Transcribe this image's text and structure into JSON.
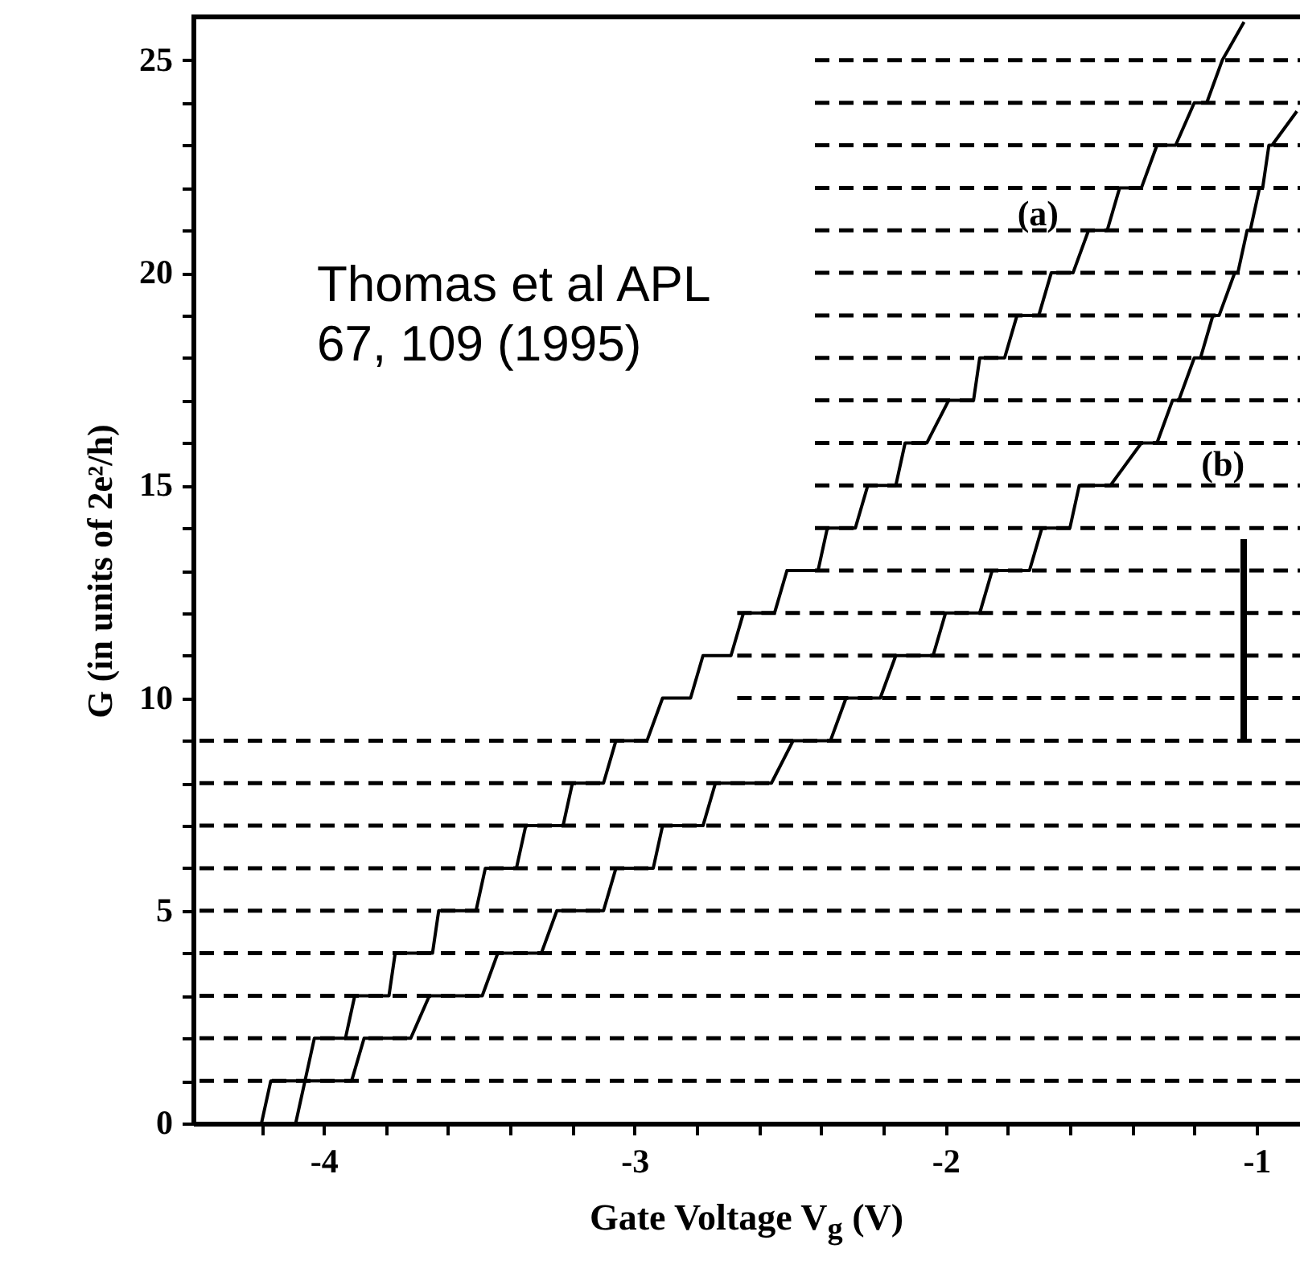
{
  "chart_data": {
    "type": "line",
    "xlabel": "Gate Voltage V$_{g}$ (V)",
    "ylabel": "G (in units of 2e²/h)",
    "xlim": [
      -4.42,
      -0.86
    ],
    "ylim": [
      0,
      26
    ],
    "xticks": [
      {
        "value": -4.2,
        "label": null
      },
      -4,
      {
        "value": -3.8,
        "label": null
      },
      {
        "value": -3.6,
        "label": null
      },
      {
        "value": -3.4,
        "label": null
      },
      {
        "value": -3.2,
        "label": null
      },
      -3,
      {
        "value": -2.8,
        "label": null
      },
      {
        "value": -2.6,
        "label": null
      },
      {
        "value": -2.4,
        "label": null
      },
      {
        "value": -2.2,
        "label": null
      },
      -2,
      {
        "value": -1.8,
        "label": null
      },
      {
        "value": -1.6,
        "label": null
      },
      {
        "value": -1.4,
        "label": null
      },
      {
        "value": -1.2,
        "label": null
      },
      -1
    ],
    "yticks": [
      0,
      {
        "value": 1,
        "label": null
      },
      {
        "value": 2,
        "label": null
      },
      {
        "value": 3,
        "label": null
      },
      {
        "value": 4,
        "label": null
      },
      5,
      {
        "value": 6,
        "label": null
      },
      {
        "value": 7,
        "label": null
      },
      {
        "value": 8,
        "label": null
      },
      {
        "value": 9,
        "label": null
      },
      10,
      {
        "value": 11,
        "label": null
      },
      {
        "value": 12,
        "label": null
      },
      {
        "value": 13,
        "label": null
      },
      {
        "value": 14,
        "label": null
      },
      15,
      {
        "value": 16,
        "label": null
      },
      {
        "value": 17,
        "label": null
      },
      {
        "value": 18,
        "label": null
      },
      {
        "value": 19,
        "label": null
      },
      20,
      {
        "value": 21,
        "label": null
      },
      {
        "value": 22,
        "label": null
      },
      {
        "value": 23,
        "label": null
      },
      {
        "value": 24,
        "label": null
      },
      25
    ],
    "grid": false,
    "annotations": [
      "Thomas et al APL\n67, 109 (1995)"
    ],
    "ref_lines": [
      {
        "axis": "y",
        "value": 1,
        "line_style": "dashed"
      },
      {
        "axis": "y",
        "value": 2,
        "line_style": "dashed"
      },
      {
        "axis": "y",
        "value": 3,
        "line_style": "dashed"
      },
      {
        "axis": "y",
        "value": 4,
        "line_style": "dashed"
      },
      {
        "axis": "y",
        "value": 5,
        "line_style": "dashed"
      },
      {
        "axis": "y",
        "value": 6,
        "line_style": "dashed"
      },
      {
        "axis": "y",
        "value": 7,
        "line_style": "dashed"
      },
      {
        "axis": "y",
        "value": 8,
        "line_style": "dashed"
      },
      {
        "axis": "y",
        "value": 9,
        "line_style": "dashed"
      }
    ],
    "series": [
      {
        "name": "(a)",
        "color": "#000000",
        "line_style": "solid",
        "x": [
          -4.2,
          -4.17,
          -4.06,
          -4.03,
          -3.93,
          -3.9,
          -3.79,
          -3.77,
          -3.65,
          -3.63,
          -3.51,
          -3.48,
          -3.38,
          -3.35,
          -3.23,
          -3.2,
          -3.1,
          -3.06,
          -2.96,
          -2.91,
          -2.82,
          -2.78,
          -2.69,
          -2.65,
          -2.55,
          -2.51,
          -2.41,
          -2.38,
          -2.29,
          -2.25,
          -2.16,
          -2.13,
          -2.06,
          -1.99,
          -1.91,
          -1.89,
          -1.81,
          -1.77,
          -1.7,
          -1.66,
          -1.59,
          -1.54,
          -1.48,
          -1.44,
          -1.37,
          -1.32,
          -1.26,
          -1.2,
          -1.16,
          -1.11,
          -1.04
        ],
        "values": [
          0,
          1,
          1,
          2,
          2,
          3,
          3,
          4,
          4,
          5,
          5,
          6,
          6,
          7,
          7,
          8,
          8,
          9,
          9,
          10,
          10,
          11,
          11,
          12,
          12,
          13,
          13,
          14,
          14,
          15,
          15,
          16,
          16,
          17,
          17,
          18,
          18,
          19,
          19,
          20,
          20,
          21,
          21,
          22,
          22,
          23,
          23,
          24,
          24,
          25,
          25.9
        ]
      },
      {
        "name": "(b)",
        "color": "#000000",
        "line_style": "solid",
        "x": [
          -4.09,
          -4.06,
          -3.91,
          -3.87,
          -3.72,
          -3.66,
          -3.49,
          -3.44,
          -3.3,
          -3.25,
          -3.1,
          -3.06,
          -2.94,
          -2.91,
          -2.78,
          -2.74,
          -2.56,
          -2.49,
          -2.37,
          -2.32,
          -2.21,
          -2.16,
          -2.04,
          -2.0,
          -1.89,
          -1.85,
          -1.73,
          -1.69,
          -1.6,
          -1.57,
          -1.47,
          -1.37,
          -1.32,
          -1.27,
          -1.25,
          -1.2,
          -1.18,
          -1.14,
          -1.12,
          -1.07,
          -1.06,
          -1.03,
          -1.02,
          -0.99,
          -0.98,
          -0.96,
          -0.95,
          -0.87
        ],
        "values": [
          0,
          1,
          1,
          2,
          2,
          3,
          3,
          4,
          4,
          5,
          5,
          6,
          6,
          7,
          7,
          8,
          8,
          9,
          9,
          10,
          10,
          11,
          11,
          12,
          12,
          13,
          13,
          14,
          14,
          15,
          15,
          16,
          16,
          17,
          17,
          18,
          18,
          19,
          19,
          20,
          20,
          21,
          21,
          22,
          22,
          23,
          23,
          23.8
        ]
      },
      {
        "type": "line",
        "color": "#000000",
        "line_style": "dashed",
        "x": [
          -2.67,
          -0.86
        ],
        "values": [
          10,
          10
        ]
      },
      {
        "type": "line",
        "color": "#000000",
        "line_style": "dashed",
        "x": [
          -2.67,
          -0.86
        ],
        "values": [
          11,
          11
        ]
      },
      {
        "type": "line",
        "color": "#000000",
        "line_style": "dashed",
        "x": [
          -2.67,
          -0.86
        ],
        "values": [
          12,
          12
        ]
      },
      {
        "type": "line",
        "color": "#000000",
        "line_style": "dashed",
        "x": [
          -2.42,
          -0.86
        ],
        "values": [
          13,
          13
        ]
      },
      {
        "type": "line",
        "color": "#000000",
        "line_style": "dashed",
        "x": [
          -2.42,
          -0.86
        ],
        "values": [
          14,
          14
        ]
      },
      {
        "type": "line",
        "color": "#000000",
        "line_style": "dashed",
        "x": [
          -2.42,
          -0.86
        ],
        "values": [
          15,
          15
        ]
      },
      {
        "type": "line",
        "color": "#000000",
        "line_style": "dashed",
        "x": [
          -2.42,
          -0.86
        ],
        "values": [
          16,
          16
        ]
      },
      {
        "type": "line",
        "color": "#000000",
        "line_style": "dashed",
        "x": [
          -2.42,
          -0.86
        ],
        "values": [
          17,
          17
        ]
      },
      {
        "type": "line",
        "color": "#000000",
        "line_style": "dashed",
        "x": [
          -2.42,
          -0.86
        ],
        "values": [
          18,
          18
        ]
      },
      {
        "type": "line",
        "color": "#000000",
        "line_style": "dashed",
        "x": [
          -2.42,
          -0.86
        ],
        "values": [
          19,
          19
        ]
      },
      {
        "type": "line",
        "color": "#000000",
        "line_style": "dashed",
        "x": [
          -2.42,
          -0.86
        ],
        "values": [
          20,
          20
        ]
      },
      {
        "type": "line",
        "color": "#000000",
        "line_style": "dashed",
        "x": [
          -2.42,
          -0.86
        ],
        "values": [
          21,
          21
        ]
      },
      {
        "type": "line",
        "color": "#000000",
        "line_style": "dashed",
        "x": [
          -2.42,
          -0.86
        ],
        "values": [
          22,
          22
        ]
      },
      {
        "type": "line",
        "color": "#000000",
        "line_style": "dashed",
        "x": [
          -2.42,
          -0.86
        ],
        "values": [
          23,
          23
        ]
      },
      {
        "type": "line",
        "color": "#000000",
        "line_style": "dashed",
        "x": [
          -2.42,
          -0.86
        ],
        "values": [
          24,
          24
        ]
      },
      {
        "type": "line",
        "color": "#000000",
        "line_style": "dashed",
        "x": [
          -2.42,
          -0.86
        ],
        "values": [
          25,
          25
        ]
      }
    ]
  }
}
